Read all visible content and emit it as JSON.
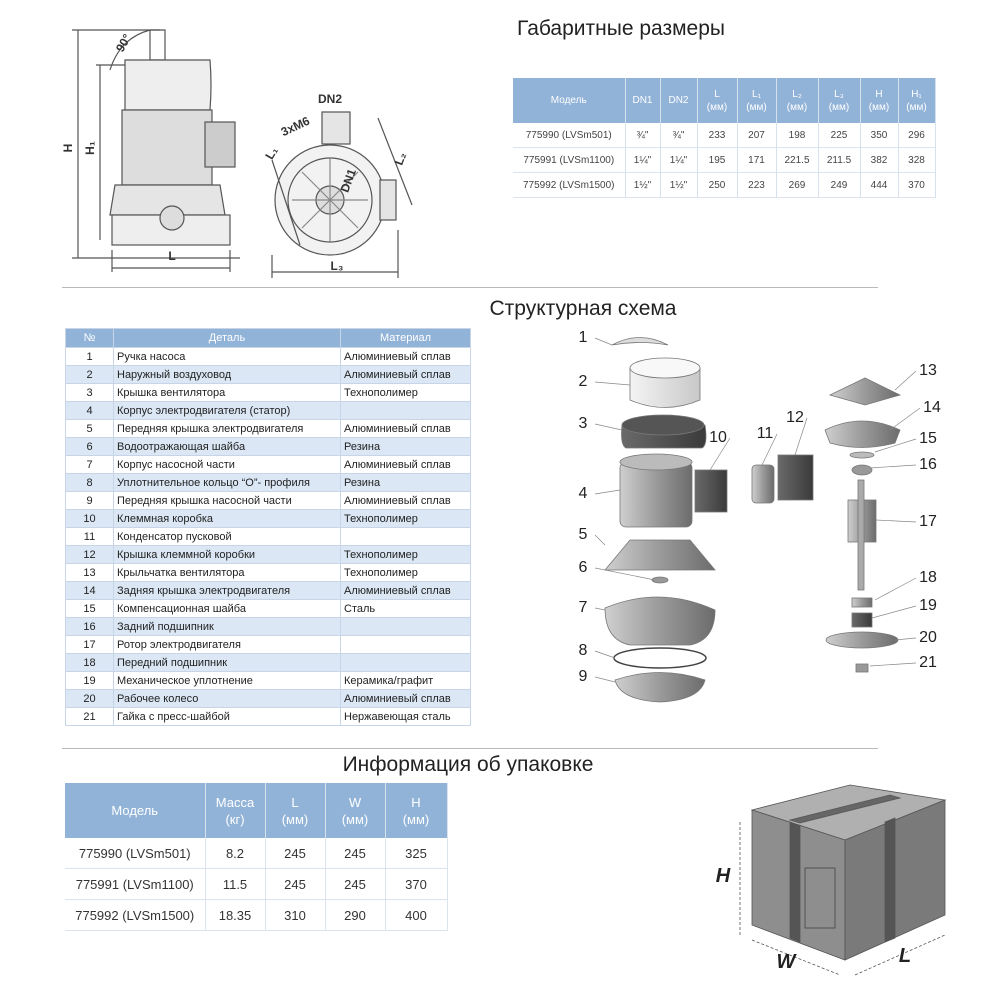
{
  "dimensions": {
    "title": "Габаритные размеры",
    "drawing_labels": [
      "90°",
      "H",
      "H₁",
      "L",
      "DN2",
      "3xM6",
      "L₁",
      "L₂",
      "DN1",
      "L₃"
    ],
    "table": {
      "headers": [
        {
          "name": "Модель"
        },
        {
          "name": "DN1"
        },
        {
          "name": "DN2"
        },
        {
          "name": "L",
          "unit": "(мм)"
        },
        {
          "name": "L₁",
          "unit": "(мм)"
        },
        {
          "name": "L₂",
          "unit": "(мм)"
        },
        {
          "name": "L₃",
          "unit": "(мм)"
        },
        {
          "name": "H",
          "unit": "(мм)"
        },
        {
          "name": "H₁",
          "unit": "(мм)"
        }
      ],
      "rows": [
        [
          "775990 (LVSm501)",
          "¾\"",
          "¾\"",
          "233",
          "207",
          "198",
          "225",
          "350",
          "296"
        ],
        [
          "775991 (LVSm1100)",
          "1¼\"",
          "1¼\"",
          "195",
          "171",
          "221.5",
          "211.5",
          "382",
          "328"
        ],
        [
          "775992 (LVSm1500)",
          "1½\"",
          "1½\"",
          "250",
          "223",
          "269",
          "249",
          "444",
          "370"
        ]
      ]
    }
  },
  "structure": {
    "title": "Структурная схема",
    "table": {
      "headers": [
        "№",
        "Деталь",
        "Материал"
      ],
      "rows": [
        [
          "1",
          "Ручка насоса",
          "Алюминиевый сплав"
        ],
        [
          "2",
          "Наружный воздуховод",
          "Алюминиевый сплав"
        ],
        [
          "3",
          "Крышка вентилятора",
          "Технополимер"
        ],
        [
          "4",
          "Корпус электродвигателя (статор)"
        ],
        [
          "5",
          "Передняя крышка электродвигателя",
          "Алюминиевый сплав"
        ],
        [
          "6",
          "Водоотражающая шайба",
          "Резина"
        ],
        [
          "7",
          "Корпус насосной части",
          "Алюминиевый сплав"
        ],
        [
          "8",
          "Уплотнительное кольцо “О”- профиля",
          "Резина"
        ],
        [
          "9",
          "Передняя крышка насосной части",
          "Алюминиевый сплав"
        ],
        [
          "10",
          "Клеммная коробка",
          "Технополимер"
        ],
        [
          "11",
          "Конденсатор пусковой"
        ],
        [
          "12",
          "Крышка клеммной коробки",
          "Технополимер"
        ],
        [
          "13",
          "Крыльчатка вентилятора",
          "Технополимер"
        ],
        [
          "14",
          "Задняя крышка электродвигателя",
          "Алюминиевый сплав"
        ],
        [
          "15",
          "Компенсационная шайба",
          "Сталь"
        ],
        [
          "16",
          "Задний подшипник"
        ],
        [
          "17",
          "Ротор электродвигателя"
        ],
        [
          "18",
          "Передний подшипник"
        ],
        [
          "19",
          "Механическое уплотнение",
          "Керамика/графит"
        ],
        [
          "20",
          "Рабочее колесо",
          "Алюминиевый сплав"
        ],
        [
          "21",
          "Гайка с пресс-шайбой",
          "Нержавеющая сталь"
        ]
      ]
    },
    "callouts": [
      "1",
      "2",
      "3",
      "4",
      "5",
      "6",
      "7",
      "8",
      "9",
      "10",
      "11",
      "12",
      "13",
      "14",
      "15",
      "16",
      "17",
      "18",
      "19",
      "20",
      "21"
    ]
  },
  "packaging": {
    "title": "Информация об упаковке",
    "table": {
      "headers": [
        {
          "name": "Модель"
        },
        {
          "name": "Масса",
          "unit": "(кг)"
        },
        {
          "name": "L",
          "unit": "(мм)"
        },
        {
          "name": "W",
          "unit": "(мм)"
        },
        {
          "name": "H",
          "unit": "(мм)"
        }
      ],
      "rows": [
        [
          "775990 (LVSm501)",
          "8.2",
          "245",
          "245",
          "325"
        ],
        [
          "775991 (LVSm1100)",
          "11.5",
          "245",
          "245",
          "370"
        ],
        [
          "775992 (LVSm1500)",
          "18.35",
          "310",
          "290",
          "400"
        ]
      ]
    },
    "box_labels": [
      "H",
      "W",
      "L"
    ]
  }
}
